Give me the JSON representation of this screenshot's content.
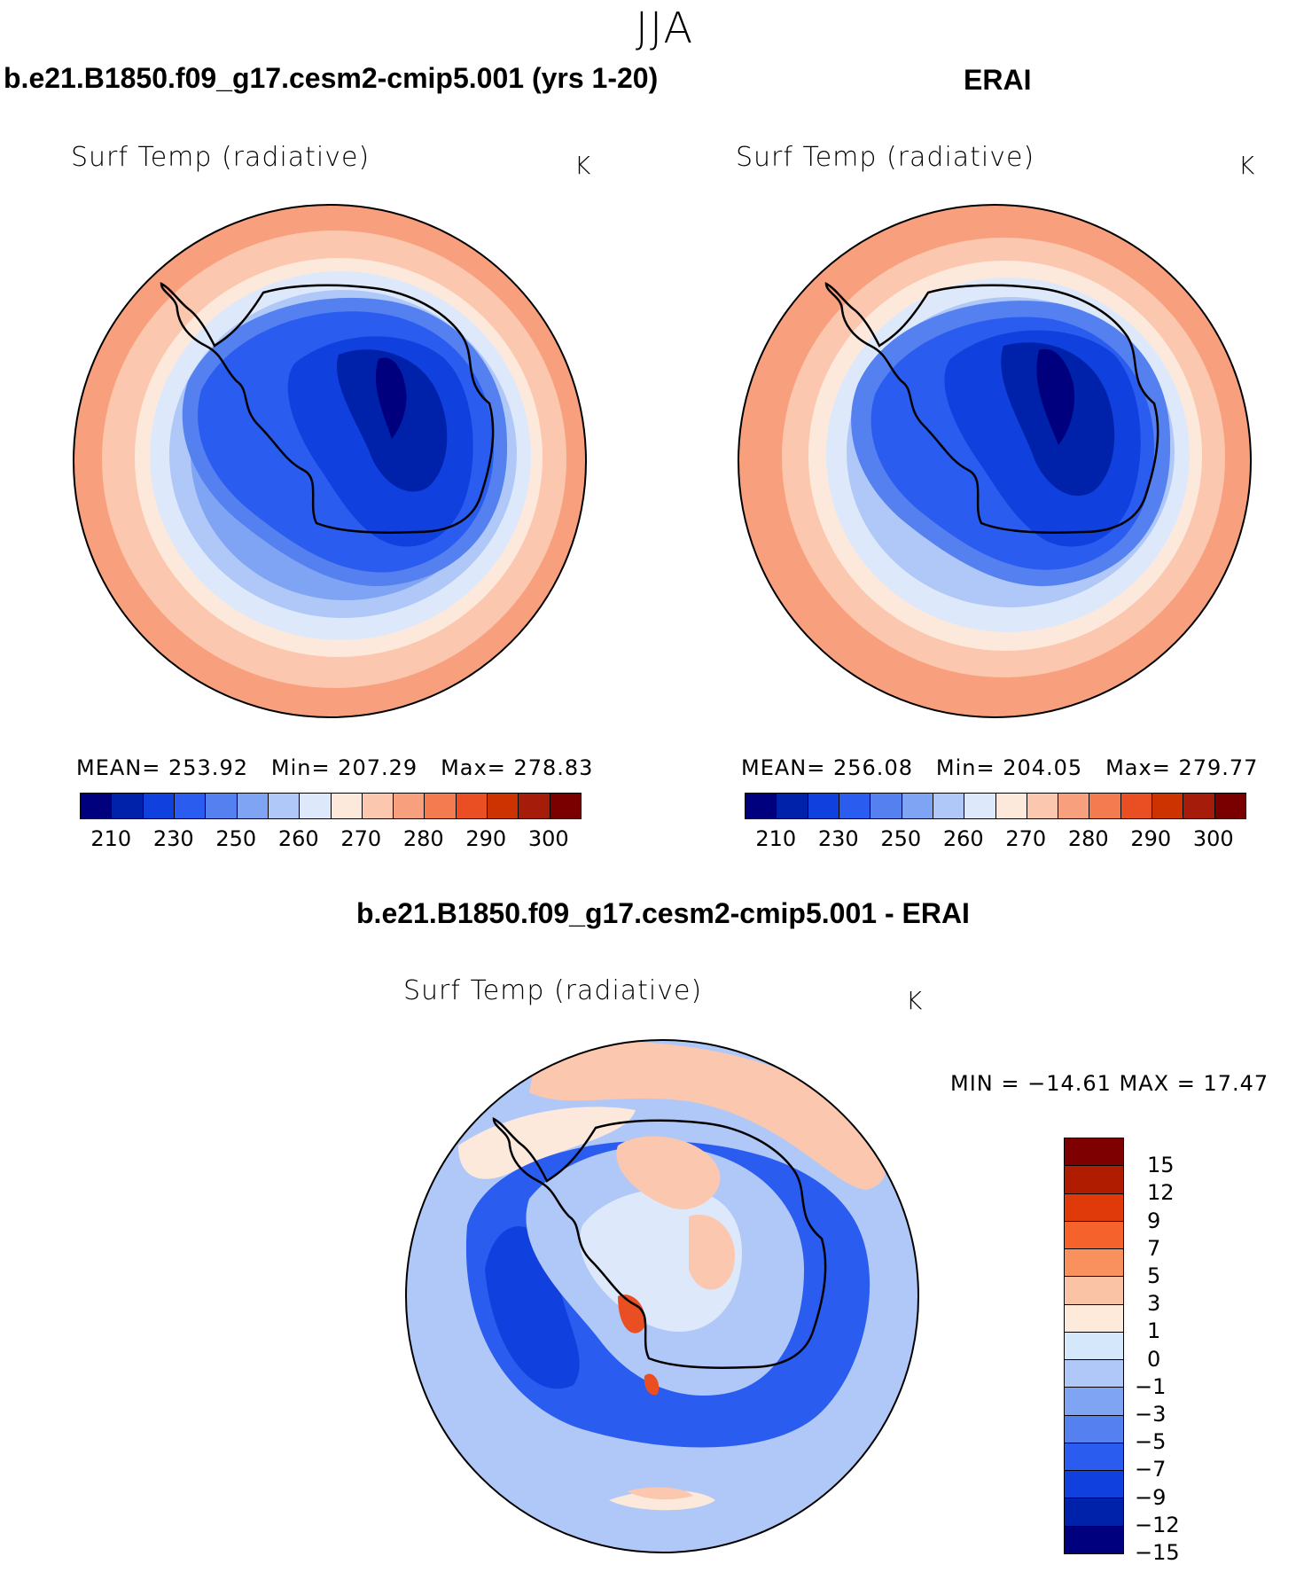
{
  "season": "JJA",
  "panels": [
    {
      "title": "b.e21.B1850.f09_g17.cesm2-cmip5.001 (yrs 1-20)",
      "variable": "Surf Temp (radiative)",
      "units": "K",
      "stats": {
        "mean_label": "MEAN=",
        "mean": "253.92",
        "min_label": "Min=",
        "min": "207.29",
        "max_label": "Max=",
        "max": "278.83"
      }
    },
    {
      "title": "ERAI",
      "variable": "Surf Temp (radiative)",
      "units": "K",
      "stats": {
        "mean_label": "MEAN=",
        "mean": "256.08",
        "min_label": "Min=",
        "min": "204.05",
        "max_label": "Max=",
        "max": "279.77"
      }
    },
    {
      "title": "b.e21.B1850.f09_g17.cesm2-cmip5.001 - ERAI",
      "variable": "Surf Temp (radiative)",
      "units": "K",
      "minmax_text": "MIN = −14.61  MAX =   17.47"
    }
  ],
  "abs_colorbar": {
    "colors": [
      "#00007f",
      "#0022aa",
      "#1040dd",
      "#2a5cf0",
      "#5580f0",
      "#80a4f4",
      "#b0c8f8",
      "#dde9fb",
      "#fde9dc",
      "#fbc7ae",
      "#f8a07e",
      "#f47a4f",
      "#e94f22",
      "#cc3300",
      "#a51d0a",
      "#7a0000"
    ],
    "ticks": [
      "210",
      "230",
      "250",
      "260",
      "270",
      "280",
      "290",
      "300"
    ]
  },
  "diff_colorbar": {
    "colors": [
      "#7f0000",
      "#b01c00",
      "#e03a0a",
      "#f5622c",
      "#f8915e",
      "#fbc3a6",
      "#fdeadb",
      "#d5e8fb",
      "#b0c8f8",
      "#80a4f4",
      "#5580f0",
      "#2a5cf0",
      "#1040dd",
      "#0022aa",
      "#00007f"
    ],
    "labels": [
      "15",
      "12",
      "9",
      "7",
      "5",
      "3",
      "1",
      "0",
      "−1",
      "−3",
      "−5",
      "−7",
      "−9",
      "−12",
      "−15"
    ]
  },
  "map_colors": {
    "ring1": "#f8a07e",
    "ring2": "#fbc7ae",
    "ring3": "#fde9dc",
    "ring4": "#dde9fb",
    "ring5": "#b0c8f8",
    "ring6": "#80a4f4",
    "ring7": "#5580f0",
    "ring8": "#2a5cf0",
    "ring9": "#1040dd",
    "ring10": "#0022aa",
    "ring11": "#00007f",
    "diff_bg": "#b0c8f8",
    "diff_mid": "#dde9fb",
    "diff_blue": "#2a5cf0",
    "diff_dark": "#1040dd",
    "diff_warm": "#fbc7ae",
    "diff_hot": "#e94f22",
    "diff_pale": "#fde9dc"
  }
}
